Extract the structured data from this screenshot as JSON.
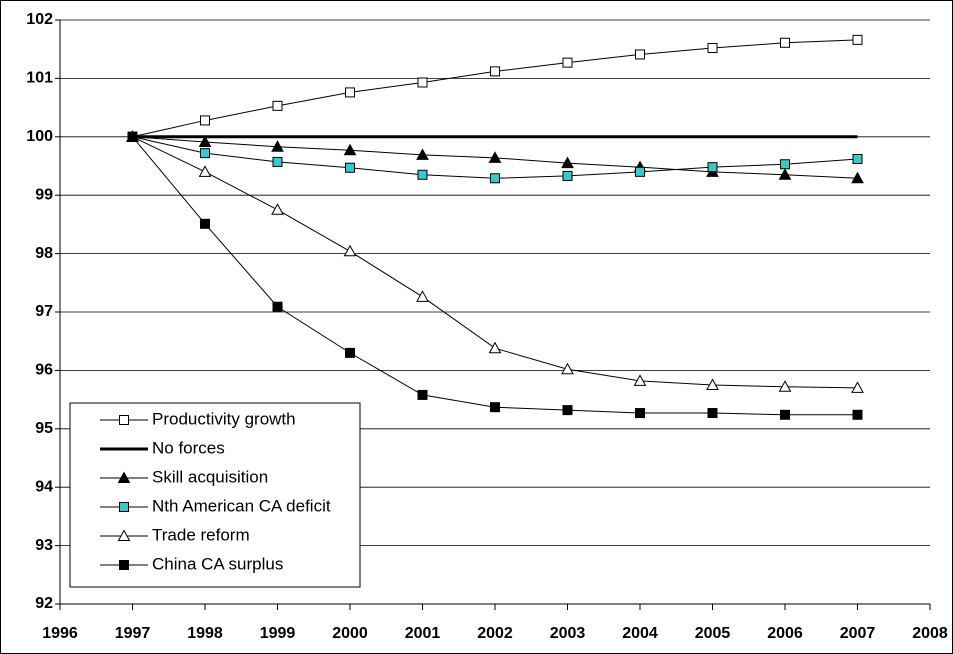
{
  "chart_data": {
    "type": "line",
    "x": [
      1997,
      1998,
      1999,
      2000,
      2001,
      2002,
      2003,
      2004,
      2005,
      2006,
      2007
    ],
    "series": [
      {
        "name": "Productivity growth",
        "color": "#000000",
        "marker": "square",
        "marker_fill": "#ffffff",
        "line_width": 1,
        "values": [
          100,
          100.28,
          100.53,
          100.76,
          100.93,
          101.12,
          101.27,
          101.41,
          101.52,
          101.61,
          101.66
        ]
      },
      {
        "name": "No forces",
        "color": "#000000",
        "marker": "none",
        "marker_fill": "#000000",
        "line_width": 3,
        "values": [
          100,
          100,
          100,
          100,
          100,
          100,
          100,
          100,
          100,
          100,
          100
        ]
      },
      {
        "name": "Skill acquisition",
        "color": "#000000",
        "marker": "triangle",
        "marker_fill": "#000000",
        "line_width": 1,
        "values": [
          100,
          99.91,
          99.83,
          99.77,
          99.69,
          99.64,
          99.55,
          99.48,
          99.4,
          99.35,
          99.29
        ]
      },
      {
        "name": "Nth American CA deficit",
        "color": "#000000",
        "marker": "square",
        "marker_fill": "#33cccc",
        "line_width": 1,
        "values": [
          100,
          99.72,
          99.57,
          99.47,
          99.35,
          99.29,
          99.33,
          99.4,
          99.48,
          99.53,
          99.62
        ]
      },
      {
        "name": "Trade reform",
        "color": "#000000",
        "marker": "triangle",
        "marker_fill": "#ffffff",
        "line_width": 1,
        "values": [
          100,
          99.4,
          98.75,
          98.04,
          97.26,
          96.38,
          96.02,
          95.82,
          95.75,
          95.72,
          95.7
        ]
      },
      {
        "name": "China CA surplus",
        "color": "#000000",
        "marker": "square",
        "marker_fill": "#000000",
        "line_width": 1,
        "values": [
          100,
          98.51,
          97.09,
          96.3,
          95.58,
          95.37,
          95.32,
          95.27,
          95.27,
          95.24,
          95.24
        ]
      }
    ],
    "xlim": [
      1996,
      2008
    ],
    "xticks": [
      1996,
      1997,
      1998,
      1999,
      2000,
      2001,
      2002,
      2003,
      2004,
      2005,
      2006,
      2007,
      2008
    ],
    "ylim": [
      92,
      102
    ],
    "yticks": [
      92,
      93,
      94,
      95,
      96,
      97,
      98,
      99,
      100,
      101,
      102
    ],
    "grid": true,
    "legend": "lower left"
  }
}
